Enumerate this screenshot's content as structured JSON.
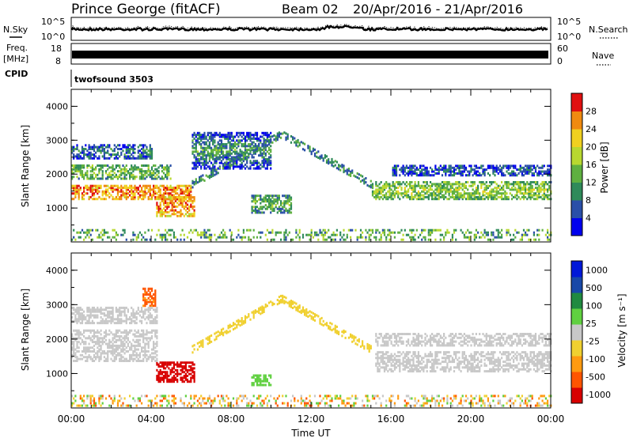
{
  "header": {
    "title": "Prince George (fitACF)",
    "beam": "Beam 02",
    "date_range": "20/Apr/2016 - 21/Apr/2016"
  },
  "side_labels": {
    "nsky": "N.Sky",
    "freq_line1": "Freq.",
    "freq_line2": "[MHz]",
    "cpid": "CPID",
    "nsearch": "N.Search",
    "nave": "Nave"
  },
  "cpid_text": "twofsound 3503",
  "colors": {
    "power": [
      "#0000ee",
      "#2a4fa8",
      "#2f8a5a",
      "#5fb040",
      "#b8d830",
      "#f0d020",
      "#f08a10",
      "#e01010"
    ],
    "velocity": [
      "#d80000",
      "#ff5500",
      "#ff9a10",
      "#f0d030",
      "#c8c8c8",
      "#60d040",
      "#208a40",
      "#1848a8",
      "#0018d8"
    ]
  },
  "chart_data": [
    {
      "type": "line",
      "name": "noise-panel",
      "yticks_left": [
        "10^5",
        "10^0"
      ],
      "yticks_right": [
        "10^5",
        "10^0"
      ]
    },
    {
      "type": "line",
      "name": "freq-panel",
      "yticks_left": [
        "18",
        "8"
      ],
      "yticks_right": [
        "60",
        "0"
      ]
    },
    {
      "type": "heatmap",
      "name": "power-panel",
      "xlabel": "",
      "ylabel": "Slant Range [km]",
      "xlim_hours": [
        0,
        24
      ],
      "ylim": [
        0,
        4500
      ],
      "yticks": [
        "1000",
        "2000",
        "3000",
        "4000"
      ],
      "colorbar": {
        "label": "Power [dB]",
        "ticks": [
          "4",
          "8",
          "12",
          "16",
          "20",
          "24",
          "28"
        ],
        "range": [
          0,
          32
        ]
      },
      "features": [
        {
          "t": [
            0,
            6
          ],
          "r": [
            1300,
            1700
          ],
          "v": 27
        },
        {
          "t": [
            0,
            5
          ],
          "r": [
            1900,
            2300
          ],
          "v": 15
        },
        {
          "t": [
            0,
            4
          ],
          "r": [
            2500,
            2900
          ],
          "v": 9
        },
        {
          "t": [
            4.2,
            6.2
          ],
          "r": [
            800,
            1400
          ],
          "v": 27
        },
        {
          "t": [
            9,
            11
          ],
          "r": [
            900,
            1400
          ],
          "v": 14
        },
        {
          "t": [
            6,
            10
          ],
          "r": [
            2200,
            3300
          ],
          "v": 12
        },
        {
          "t": [
            15,
            24
          ],
          "r": [
            1300,
            1800
          ],
          "v": 17
        },
        {
          "t": [
            16,
            24
          ],
          "r": [
            2000,
            2300
          ],
          "v": 7
        }
      ]
    },
    {
      "type": "heatmap",
      "name": "velocity-panel",
      "xlabel": "Time UT",
      "ylabel": "Slant Range [km]",
      "xlim_hours": [
        0,
        24
      ],
      "ylim": [
        0,
        4500
      ],
      "xticks": [
        "00:00",
        "04:00",
        "08:00",
        "12:00",
        "16:00",
        "20:00",
        "00:00"
      ],
      "yticks": [
        "1000",
        "2000",
        "3000",
        "4000"
      ],
      "colorbar": {
        "label": "Velocity [m s⁻¹]",
        "ticks": [
          "1000",
          "500",
          "100",
          "25",
          "-25",
          "-100",
          "-500",
          "-1000"
        ]
      },
      "features": [
        {
          "t": [
            4.2,
            6.2
          ],
          "r": [
            800,
            1400
          ],
          "v": -700
        },
        {
          "t": [
            3.5,
            4.2
          ],
          "r": [
            3000,
            3500
          ],
          "v": -120
        },
        {
          "t": [
            9,
            10
          ],
          "r": [
            700,
            1000
          ],
          "v": 200
        }
      ]
    }
  ]
}
